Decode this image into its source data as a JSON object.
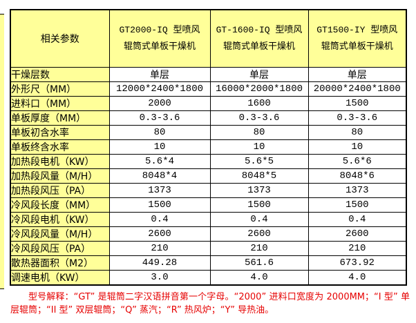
{
  "colors": {
    "cell_yellow": "#FFFF99",
    "border_black": "#000000",
    "note_red": "#E60000",
    "value_bg": "#FFFFFF"
  },
  "table": {
    "param_header": "相关参数",
    "columns": [
      "GT2000-IQ 型喷风\n辊筒式单板干燥机",
      "GT-1600-IQ 型喷风\n辊筒式单板干燥机",
      "GT1500-IY 型喷风\n辊筒式单板干燥机"
    ],
    "rows": [
      {
        "label": "干燥层数",
        "values": [
          "单层",
          "单层",
          "单层"
        ]
      },
      {
        "label": "外形尺（MM）",
        "values": [
          "12000*2400*1800",
          "16000*2000*1800",
          "20000*2400*1800"
        ]
      },
      {
        "label": "进料口（MM）",
        "values": [
          "2000",
          "1600",
          "1500"
        ]
      },
      {
        "label": "单板厚度（MM）",
        "values": [
          "0.3-3.6",
          "0.3-3.6",
          "0.3-3.6"
        ]
      },
      {
        "label": "单板初含水率",
        "values": [
          "80",
          "80",
          "80"
        ]
      },
      {
        "label": "单板终含水率",
        "values": [
          "10",
          "10",
          "10"
        ]
      },
      {
        "label": "加热段电机（KW）",
        "values": [
          "5.6*4",
          "5.6*5",
          "5.6*6"
        ]
      },
      {
        "label": "加热段风量（M/H）",
        "values": [
          "8048*4",
          "8048*5",
          "8048*6"
        ]
      },
      {
        "label": "加热段风压（PA）",
        "values": [
          "1373",
          "1373",
          "1373"
        ]
      },
      {
        "label": "冷风段长度（MM）",
        "values": [
          "1500",
          "1500",
          "1500"
        ]
      },
      {
        "label": "冷风段电机（KW）",
        "values": [
          "0.4",
          "0.4",
          "0.4"
        ]
      },
      {
        "label": "冷风段风量（M/H）",
        "values": [
          "2600",
          "2600",
          "2600"
        ]
      },
      {
        "label": "冷风段风压（PA）",
        "values": [
          "210",
          "210",
          "210"
        ]
      },
      {
        "label": "散热器面积（M2）",
        "values": [
          "449.28",
          "561.6",
          "673.92"
        ]
      },
      {
        "label": "调速电机（KW）",
        "values": [
          "3.0",
          "4.0",
          "4.0"
        ]
      }
    ]
  },
  "footer": {
    "note": "型号解释：“GT” 是辊筒二字汉语拼音第一个字母。“2000” 进料口宽度为 2000MM；“I 型” 单层辊筒；“II 型” 双层辊筒；“Q” 蒸汽；“R” 热风炉；“Y” 导热油。"
  }
}
